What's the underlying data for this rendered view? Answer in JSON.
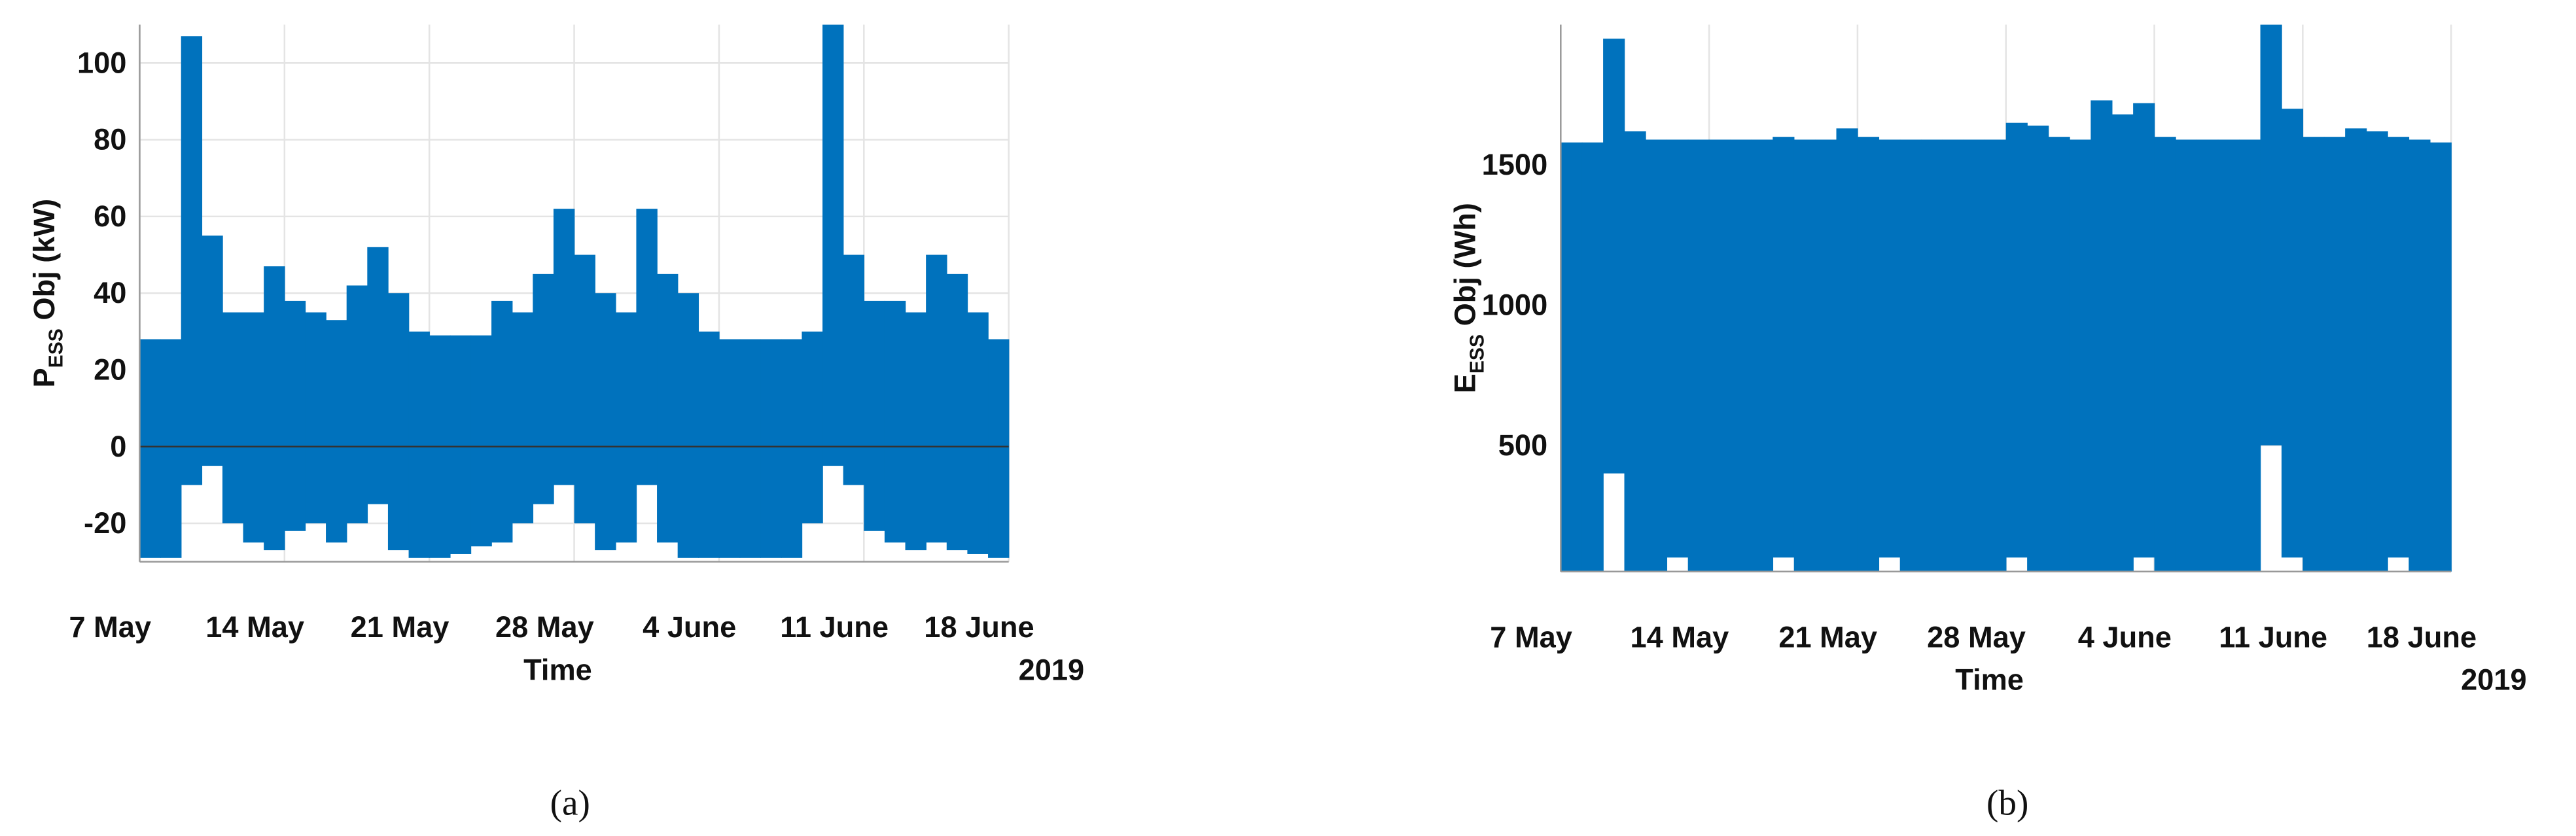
{
  "chart_data": [
    {
      "type": "band",
      "color": "#0072bd",
      "caption": "(a)",
      "ylabel": {
        "main": "P",
        "sub": "ESS",
        "rest": "Obj (kW)"
      },
      "xlabel": "Time",
      "x_year": "2019",
      "zero_line": true,
      "grid": true,
      "xlim": [
        "2019-05-07",
        "2019-06-18"
      ],
      "xticks": [
        {
          "value": "2019-05-07",
          "label": "7 May"
        },
        {
          "value": "2019-05-14",
          "label": "14 May"
        },
        {
          "value": "2019-05-21",
          "label": "21 May"
        },
        {
          "value": "2019-05-28",
          "label": "28 May"
        },
        {
          "value": "2019-06-04",
          "label": "4 June"
        },
        {
          "value": "2019-06-11",
          "label": "11 June"
        },
        {
          "value": "2019-06-18",
          "label": "18 June"
        }
      ],
      "ylim": [
        -30,
        110
      ],
      "yticks": [
        -20,
        0,
        20,
        40,
        60,
        80,
        100
      ],
      "x": [
        "2019-05-07",
        "2019-05-08",
        "2019-05-09",
        "2019-05-10",
        "2019-05-11",
        "2019-05-12",
        "2019-05-13",
        "2019-05-14",
        "2019-05-15",
        "2019-05-16",
        "2019-05-17",
        "2019-05-18",
        "2019-05-19",
        "2019-05-20",
        "2019-05-21",
        "2019-05-22",
        "2019-05-23",
        "2019-05-24",
        "2019-05-25",
        "2019-05-26",
        "2019-05-27",
        "2019-05-28",
        "2019-05-29",
        "2019-05-30",
        "2019-05-31",
        "2019-06-01",
        "2019-06-02",
        "2019-06-03",
        "2019-06-04",
        "2019-06-05",
        "2019-06-06",
        "2019-06-07",
        "2019-06-08",
        "2019-06-09",
        "2019-06-10",
        "2019-06-11",
        "2019-06-12",
        "2019-06-13",
        "2019-06-14",
        "2019-06-15",
        "2019-06-16",
        "2019-06-17"
      ],
      "upper": [
        28,
        28,
        107,
        55,
        35,
        35,
        47,
        38,
        35,
        33,
        42,
        52,
        40,
        30,
        29,
        29,
        29,
        38,
        35,
        45,
        62,
        50,
        40,
        35,
        62,
        45,
        40,
        30,
        28,
        28,
        28,
        28,
        30,
        110,
        50,
        38,
        38,
        35,
        50,
        45,
        35,
        28
      ],
      "lower": [
        -29,
        -29,
        -10,
        -5,
        -20,
        -25,
        -27,
        -22,
        -20,
        -25,
        -20,
        -15,
        -27,
        -29,
        -29,
        -28,
        -26,
        -25,
        -20,
        -15,
        -10,
        -20,
        -27,
        -25,
        -10,
        -25,
        -29,
        -29,
        -29,
        -29,
        -29,
        -29,
        -20,
        -5,
        -10,
        -22,
        -25,
        -27,
        -25,
        -27,
        -28,
        -29
      ]
    },
    {
      "type": "band",
      "color": "#0072bd",
      "caption": "(b)",
      "ylabel": {
        "main": "E",
        "sub": "ESS",
        "rest": "Obj (Wh)"
      },
      "xlabel": "Time",
      "x_year": "2019",
      "zero_line": false,
      "grid": true,
      "xlim": [
        "2019-05-07",
        "2019-06-18"
      ],
      "xticks": [
        {
          "value": "2019-05-07",
          "label": "7 May"
        },
        {
          "value": "2019-05-14",
          "label": "14 May"
        },
        {
          "value": "2019-05-21",
          "label": "21 May"
        },
        {
          "value": "2019-05-28",
          "label": "28 May"
        },
        {
          "value": "2019-06-04",
          "label": "4 June"
        },
        {
          "value": "2019-06-11",
          "label": "11 June"
        },
        {
          "value": "2019-06-18",
          "label": "18 June"
        }
      ],
      "ylim": [
        50,
        2000
      ],
      "yticks": [
        500,
        1000,
        1500
      ],
      "x": [
        "2019-05-07",
        "2019-05-08",
        "2019-05-09",
        "2019-05-10",
        "2019-05-11",
        "2019-05-12",
        "2019-05-13",
        "2019-05-14",
        "2019-05-15",
        "2019-05-16",
        "2019-05-17",
        "2019-05-18",
        "2019-05-19",
        "2019-05-20",
        "2019-05-21",
        "2019-05-22",
        "2019-05-23",
        "2019-05-24",
        "2019-05-25",
        "2019-05-26",
        "2019-05-27",
        "2019-05-28",
        "2019-05-29",
        "2019-05-30",
        "2019-05-31",
        "2019-06-01",
        "2019-06-02",
        "2019-06-03",
        "2019-06-04",
        "2019-06-05",
        "2019-06-06",
        "2019-06-07",
        "2019-06-08",
        "2019-06-09",
        "2019-06-10",
        "2019-06-11",
        "2019-06-12",
        "2019-06-13",
        "2019-06-14",
        "2019-06-15",
        "2019-06-16",
        "2019-06-17"
      ],
      "upper": [
        1580,
        1580,
        1950,
        1620,
        1590,
        1590,
        1590,
        1590,
        1590,
        1590,
        1600,
        1590,
        1590,
        1630,
        1600,
        1590,
        1590,
        1590,
        1590,
        1590,
        1590,
        1650,
        1640,
        1600,
        1590,
        1730,
        1680,
        1720,
        1600,
        1590,
        1590,
        1590,
        1590,
        2000,
        1700,
        1600,
        1600,
        1630,
        1620,
        1600,
        1590,
        1580
      ],
      "lower": [
        50,
        50,
        400,
        50,
        50,
        100,
        50,
        50,
        50,
        50,
        100,
        50,
        50,
        50,
        50,
        100,
        50,
        50,
        50,
        50,
        50,
        100,
        50,
        50,
        50,
        50,
        50,
        100,
        50,
        50,
        50,
        50,
        50,
        500,
        100,
        50,
        50,
        50,
        50,
        100,
        50,
        50
      ]
    }
  ]
}
